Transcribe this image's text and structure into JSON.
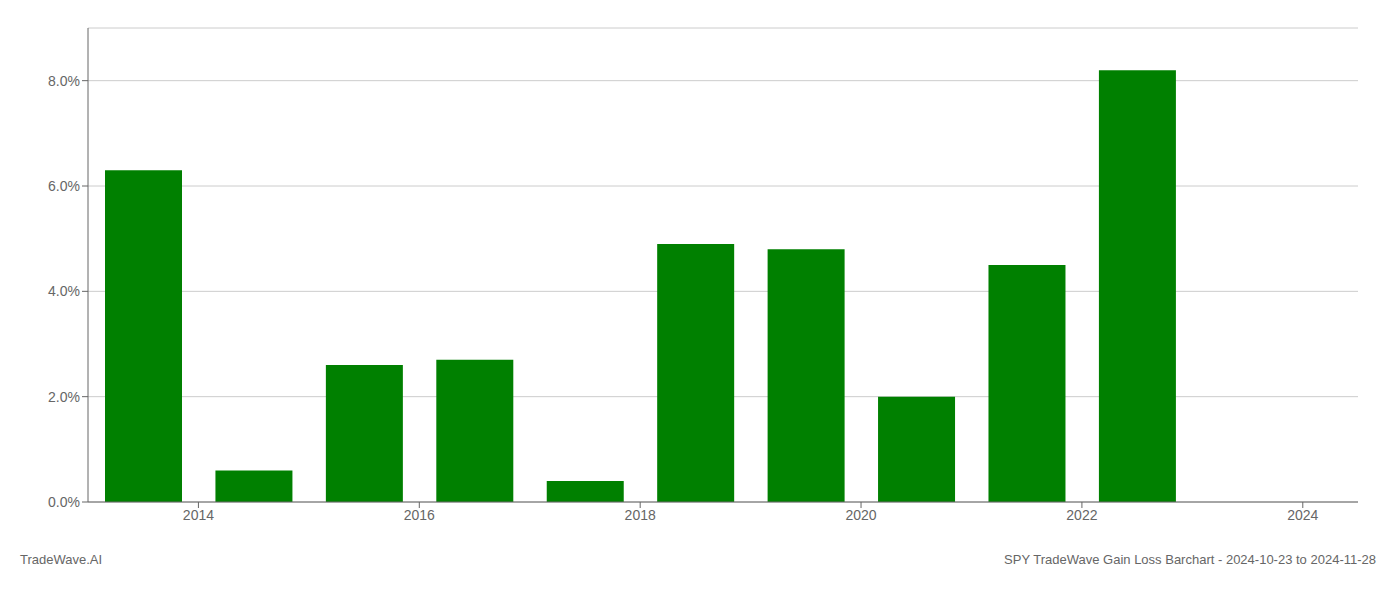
{
  "chart_data": {
    "type": "bar",
    "x": [
      2013.5,
      2014.5,
      2015.5,
      2016.5,
      2017.5,
      2018.5,
      2019.5,
      2020.5,
      2021.5,
      2022.5,
      2023.5
    ],
    "values": [
      0.063,
      0.006,
      0.026,
      0.027,
      0.004,
      0.049,
      0.048,
      0.02,
      0.045,
      0.082,
      0.0
    ],
    "color": "#008000",
    "xlim": [
      2013.0,
      2024.5
    ],
    "xticks": [
      2014,
      2016,
      2018,
      2020,
      2022,
      2024
    ],
    "ylim": [
      0,
      0.09
    ],
    "yticks": [
      {
        "value": 0.0,
        "label": "0.0%"
      },
      {
        "value": 0.02,
        "label": "2.0%"
      },
      {
        "value": 0.04,
        "label": "4.0%"
      },
      {
        "value": 0.06,
        "label": "6.0%"
      },
      {
        "value": 0.08,
        "label": "8.0%"
      }
    ],
    "grid": "y",
    "annotations": [
      "TradeWave.AI",
      "SPY TradeWave Gain Loss Barchart - 2024-10-23 to 2024-11-28"
    ]
  }
}
